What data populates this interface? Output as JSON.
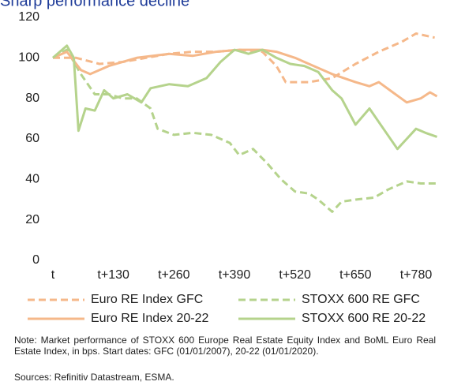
{
  "chart_data": {
    "type": "line",
    "title": "Sharp performance decline",
    "xlim": [
      0,
      840
    ],
    "xticks": [
      {
        "value": 0,
        "label": "t"
      },
      {
        "value": 130,
        "label": "t+130"
      },
      {
        "value": 260,
        "label": "t+260"
      },
      {
        "value": 390,
        "label": "t+390"
      },
      {
        "value": 520,
        "label": "t+520"
      },
      {
        "value": 650,
        "label": "t+650"
      },
      {
        "value": 780,
        "label": "t+780"
      }
    ],
    "ylim": [
      0,
      120
    ],
    "yticks": [
      0,
      20,
      40,
      60,
      80,
      100,
      120
    ],
    "series": [
      {
        "name": "Euro RE Index GFC",
        "color": "#f5b88a",
        "style": "dashed",
        "x": [
          0,
          50,
          100,
          150,
          200,
          250,
          300,
          350,
          400,
          450,
          480,
          500,
          550,
          600,
          650,
          700,
          750,
          780,
          820
        ],
        "values": [
          100,
          100,
          97,
          98,
          100,
          102,
          103,
          103,
          104,
          103,
          96,
          88,
          88,
          90,
          97,
          103,
          108,
          112,
          110
        ]
      },
      {
        "name": "STOXX 600 RE GFC",
        "color": "#b5d38c",
        "style": "dashed",
        "x": [
          0,
          30,
          60,
          90,
          120,
          150,
          180,
          210,
          225,
          260,
          300,
          340,
          380,
          400,
          430,
          460,
          490,
          520,
          550,
          570,
          600,
          620,
          650,
          690,
          720,
          760,
          790,
          825
        ],
        "values": [
          100,
          104,
          92,
          82,
          82,
          80,
          80,
          75,
          65,
          62,
          63,
          62,
          58,
          52,
          55,
          48,
          40,
          34,
          33,
          30,
          24,
          29,
          30,
          31,
          35,
          39,
          38,
          38
        ]
      },
      {
        "name": "Euro RE Index 20-22",
        "color": "#f5b88a",
        "style": "solid",
        "x": [
          0,
          30,
          60,
          80,
          120,
          180,
          250,
          300,
          350,
          400,
          450,
          480,
          520,
          560,
          600,
          650,
          680,
          700,
          730,
          760,
          790,
          810,
          825
        ],
        "values": [
          100,
          103,
          94,
          92,
          96,
          100,
          102,
          101,
          103,
          104,
          104,
          103,
          100,
          96,
          92,
          88,
          86,
          88,
          83,
          78,
          80,
          83,
          81
        ]
      },
      {
        "name": "STOXX 600 RE 20-22",
        "color": "#b5d38c",
        "style": "solid",
        "x": [
          0,
          30,
          45,
          55,
          70,
          90,
          110,
          130,
          160,
          190,
          210,
          250,
          290,
          330,
          360,
          390,
          420,
          450,
          480,
          510,
          540,
          570,
          600,
          620,
          650,
          680,
          710,
          740,
          760,
          780,
          800,
          825
        ],
        "values": [
          100,
          106,
          100,
          64,
          75,
          74,
          84,
          80,
          82,
          78,
          85,
          87,
          86,
          90,
          98,
          104,
          102,
          104,
          100,
          97,
          96,
          93,
          84,
          80,
          67,
          75,
          65,
          55,
          60,
          65,
          63,
          61
        ]
      }
    ],
    "note": "Note: Market performance of STOXX 600 Europe Real Estate Equity Index and BoML Euro Real Estate Index, in bps. Start dates: GFC (01/01/2007), 20-22 (01/01/2020).",
    "source": "Sources: Refinitiv Datastream, ESMA."
  }
}
